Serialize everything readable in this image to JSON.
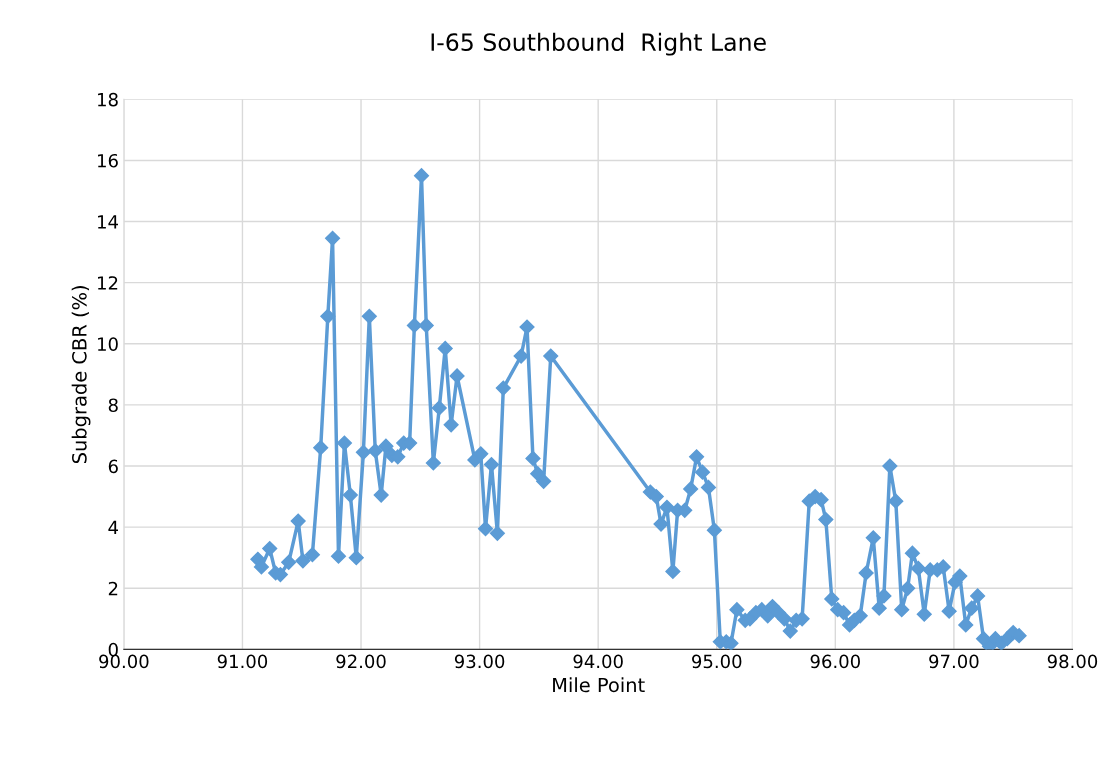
{
  "chart_data": {
    "type": "line",
    "title": "I-65 Southbound  Right Lane",
    "xlabel": "Mile Point",
    "ylabel": "Subgrade CBR (%)",
    "xlim": [
      90,
      98
    ],
    "xticks": [
      {
        "value": 90,
        "label": "90.00"
      },
      {
        "value": 91,
        "label": "91.00"
      },
      {
        "value": 92,
        "label": "92.00"
      },
      {
        "value": 93,
        "label": "93.00"
      },
      {
        "value": 94,
        "label": "94.00"
      },
      {
        "value": 95,
        "label": "95.00"
      },
      {
        "value": 96,
        "label": "96.00"
      },
      {
        "value": 97,
        "label": "97.00"
      },
      {
        "value": 98,
        "label": "98.00"
      }
    ],
    "ylim": [
      0,
      18
    ],
    "yticks": [
      0,
      2,
      4,
      6,
      8,
      10,
      12,
      14,
      16,
      18
    ],
    "grid": true,
    "marker": "diamond",
    "line_style": "solid",
    "series": [
      {
        "color": "#5b9bd5",
        "x": [
          91.13,
          91.16,
          91.23,
          91.28,
          91.32,
          91.39,
          91.47,
          91.51,
          91.59,
          91.66,
          91.72,
          91.76,
          91.81,
          91.86,
          91.91,
          91.96,
          92.02,
          92.07,
          92.12,
          92.17,
          92.21,
          92.26,
          92.31,
          92.36,
          92.41,
          92.45,
          92.51,
          92.55,
          92.61,
          92.66,
          92.71,
          92.76,
          92.81,
          92.96,
          93.01,
          93.05,
          93.1,
          93.15,
          93.2,
          93.35,
          93.4,
          93.45,
          93.49,
          93.54,
          93.6,
          94.44,
          94.49,
          94.53,
          94.58,
          94.63,
          94.67,
          94.73,
          94.78,
          94.83,
          94.88,
          94.93,
          94.98,
          95.03,
          95.08,
          95.12,
          95.17,
          95.24,
          95.28,
          95.33,
          95.38,
          95.43,
          95.47,
          95.52,
          95.57,
          95.62,
          95.67,
          95.72,
          95.78,
          95.83,
          95.88,
          95.92,
          95.97,
          96.02,
          96.07,
          96.12,
          96.16,
          96.21,
          96.26,
          96.32,
          96.37,
          96.41,
          96.46,
          96.51,
          96.56,
          96.61,
          96.65,
          96.7,
          96.75,
          96.8,
          96.86,
          96.91,
          96.96,
          97.01,
          97.05,
          97.1,
          97.15,
          97.2,
          97.25,
          97.3,
          97.35,
          97.4,
          97.45,
          97.5,
          97.55
        ],
        "values": [
          2.95,
          2.7,
          3.3,
          2.5,
          2.45,
          2.85,
          4.2,
          2.9,
          3.1,
          6.6,
          10.9,
          13.45,
          3.05,
          6.75,
          5.05,
          3.0,
          6.45,
          10.9,
          6.5,
          5.05,
          6.65,
          6.35,
          6.3,
          6.75,
          6.75,
          10.6,
          15.5,
          10.6,
          6.1,
          7.9,
          9.85,
          7.35,
          8.95,
          6.2,
          6.4,
          3.95,
          6.05,
          3.8,
          8.55,
          9.6,
          10.55,
          6.25,
          5.75,
          5.5,
          9.6,
          5.15,
          5.0,
          4.1,
          4.65,
          2.55,
          4.55,
          4.55,
          5.25,
          6.3,
          5.8,
          5.3,
          3.9,
          0.25,
          0.25,
          0.2,
          1.3,
          0.95,
          1.0,
          1.2,
          1.3,
          1.1,
          1.4,
          1.2,
          1.0,
          0.6,
          0.95,
          1.0,
          4.85,
          5.0,
          4.9,
          4.25,
          1.65,
          1.3,
          1.2,
          0.8,
          0.95,
          1.1,
          2.5,
          3.65,
          1.35,
          1.75,
          6.0,
          4.85,
          1.3,
          2.0,
          3.15,
          2.65,
          1.15,
          2.6,
          2.6,
          2.7,
          1.25,
          2.2,
          2.4,
          0.8,
          1.35,
          1.75,
          0.35,
          0.1,
          0.35,
          0.2,
          0.35,
          0.55,
          0.45
        ]
      }
    ]
  }
}
